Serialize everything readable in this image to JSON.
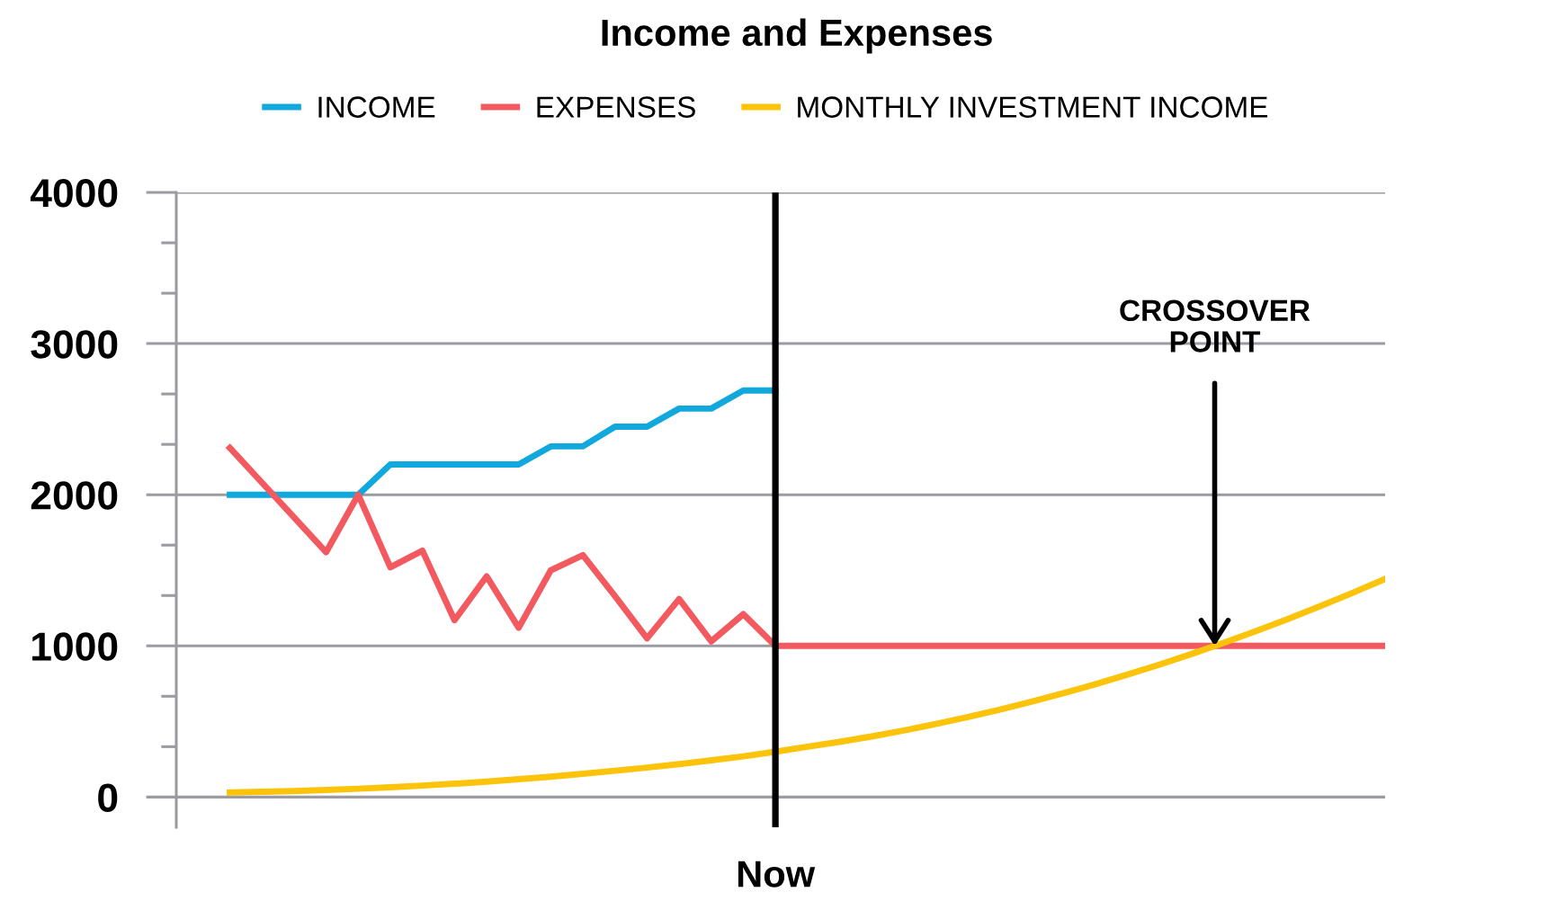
{
  "chart_data": {
    "type": "line",
    "title": "Income and Expenses",
    "categories": [
      null,
      null,
      null,
      null,
      null,
      null,
      null,
      null,
      null,
      null,
      null,
      null,
      null,
      null,
      null,
      null,
      null,
      "Now",
      null,
      null,
      null,
      null,
      null,
      null,
      null,
      null,
      null,
      null,
      null,
      null,
      null,
      null,
      null,
      null,
      null,
      null,
      null
    ],
    "series": [
      {
        "name": "INCOME",
        "color": "#11a8dd",
        "values": [
          2000,
          2000,
          2000,
          2000,
          2000,
          2200,
          2200,
          2200,
          2200,
          2200,
          2320,
          2320,
          2450,
          2450,
          2570,
          2570,
          2690,
          2690,
          null,
          null,
          null,
          null,
          null,
          null,
          null,
          null,
          null,
          null,
          null,
          null,
          null,
          null,
          null,
          null,
          null,
          null,
          null
        ]
      },
      {
        "name": "EXPENSES",
        "color": "#f25a60",
        "values": [
          2310,
          2080,
          1850,
          1620,
          2000,
          1520,
          1630,
          1170,
          1460,
          1120,
          1500,
          1600,
          1330,
          1050,
          1310,
          1030,
          1210,
          1000,
          1000,
          1000,
          1000,
          1000,
          1000,
          1000,
          1000,
          1000,
          1000,
          1000,
          1000,
          1000,
          1000,
          1000,
          1000,
          1000,
          1000,
          1000,
          1000
        ]
      },
      {
        "name": "MONTHLY INVESTMENT INCOME",
        "color": "#fcc30b",
        "values": [
          30,
          35,
          40,
          47,
          55,
          65,
          76,
          88,
          102,
          118,
          135,
          154,
          174,
          195,
          218,
          243,
          269,
          300,
          333,
          365,
          401,
          440,
          483,
          529,
          579,
          632,
          688,
          748,
          812,
          878,
          949,
          1023,
          1100,
          1180,
          1265,
          1352,
          1443
        ]
      }
    ],
    "ylim": [
      -200,
      4000
    ],
    "yticks": [
      0,
      {
        "value": 333.3,
        "label": null
      },
      {
        "value": 666.7,
        "label": null
      },
      1000,
      {
        "value": 1333.3,
        "label": null
      },
      {
        "value": 1666.7,
        "label": null
      },
      2000,
      {
        "value": 2333.3,
        "label": null
      },
      {
        "value": 2666.7,
        "label": null
      },
      3000,
      {
        "value": 3333.3,
        "label": null
      },
      {
        "value": 3666.7,
        "label": null
      },
      4000
    ],
    "grid": "y",
    "legend": "top",
    "ref_lines": [
      {
        "axis": "x",
        "value": "Now",
        "color": "#000000"
      }
    ],
    "annotations": [
      {
        "text": "CROSSOVER\nPOINT",
        "y": 1000
      }
    ]
  }
}
